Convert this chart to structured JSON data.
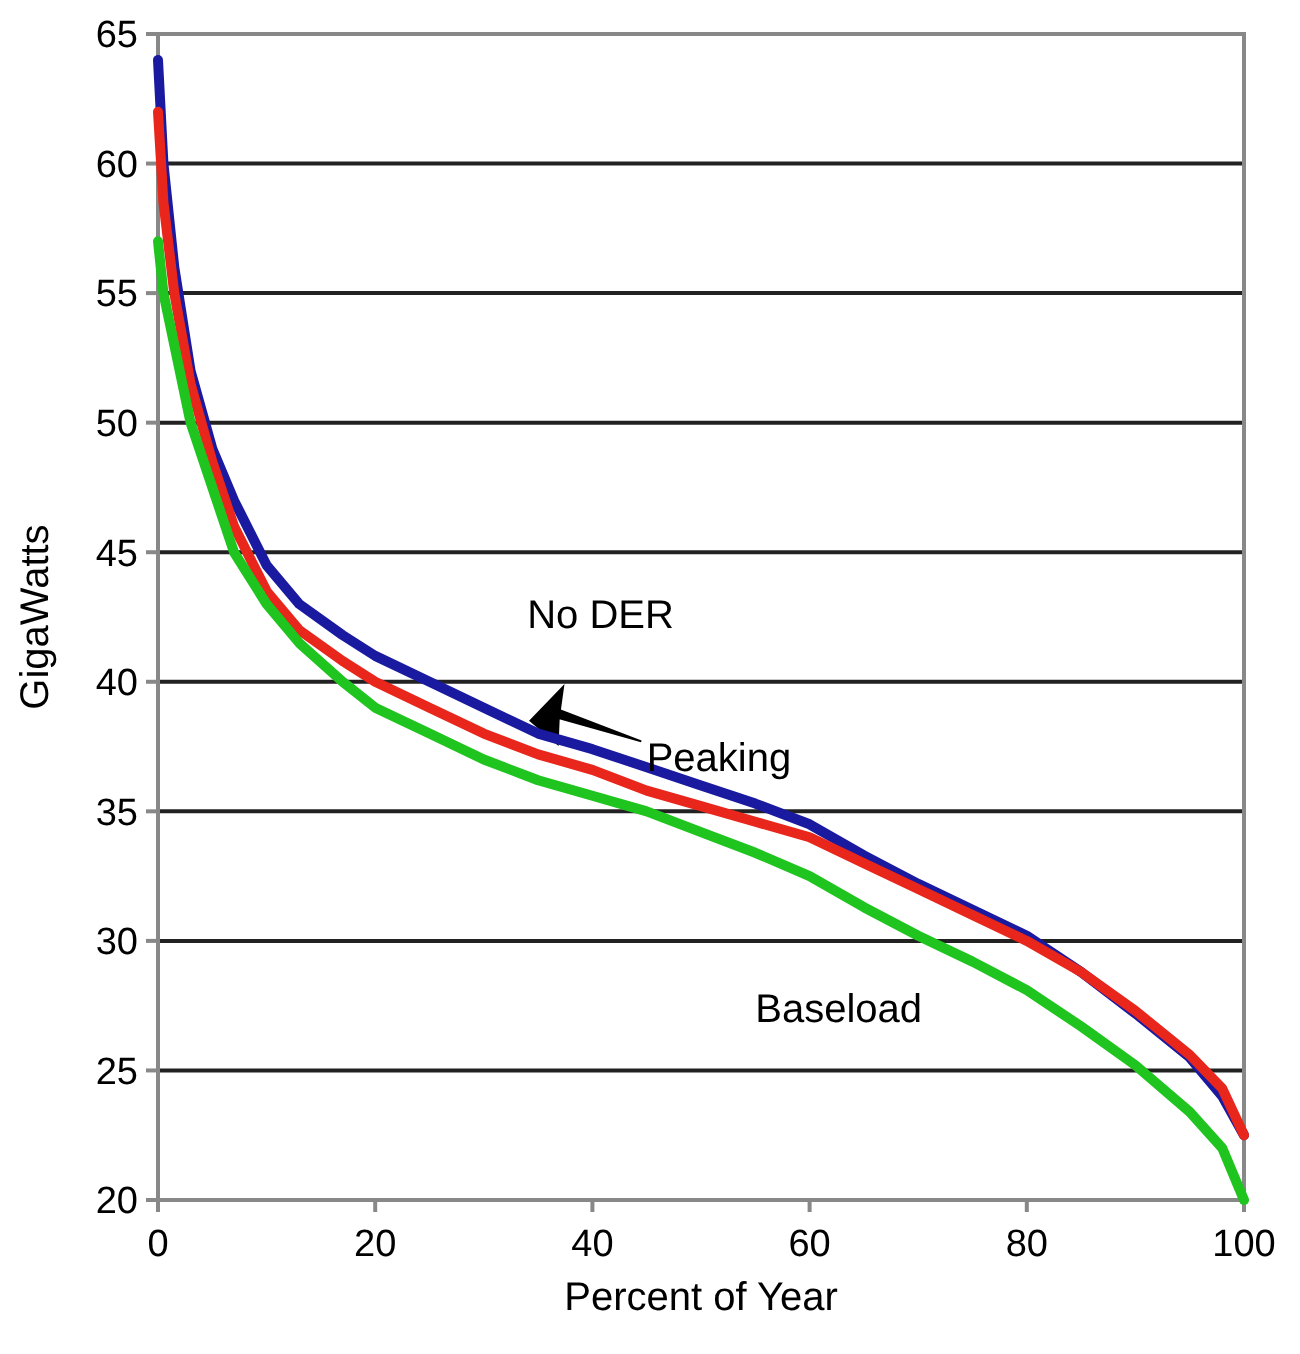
{
  "chart_data": {
    "type": "line",
    "xlabel": "Percent of Year",
    "ylabel": "GigaWatts",
    "xlim": [
      0,
      100
    ],
    "xticks": [
      0,
      20,
      40,
      60,
      80,
      100
    ],
    "ylim": [
      20,
      65
    ],
    "yticks": [
      20,
      25,
      30,
      35,
      40,
      45,
      50,
      55,
      60,
      65
    ],
    "grid": "y",
    "legend": false,
    "marker": "none",
    "line_style": "solid",
    "x": [
      0,
      0.5,
      1.5,
      3,
      5,
      7,
      10,
      13,
      17,
      20,
      25,
      30,
      35,
      40,
      45,
      50,
      55,
      60,
      65,
      70,
      75,
      80,
      85,
      90,
      95,
      98,
      100
    ],
    "series": [
      {
        "name": "No DER",
        "color": "#1a1aa0",
        "values": [
          64,
          60,
          56,
          52,
          49,
          47,
          44.5,
          43,
          41.8,
          41,
          40,
          39,
          38,
          37.4,
          36.7,
          36,
          35.3,
          34.5,
          33.3,
          32.2,
          31.2,
          30.2,
          28.8,
          27.2,
          25.5,
          24,
          22.5
        ]
      },
      {
        "name": "Peaking",
        "color": "#e8261b",
        "values": [
          62,
          58.5,
          55,
          51.5,
          48.5,
          46,
          43.5,
          42,
          40.8,
          40,
          39,
          38,
          37.2,
          36.6,
          35.8,
          35.2,
          34.6,
          34,
          33,
          32,
          31,
          30,
          28.8,
          27.3,
          25.6,
          24.3,
          22.5
        ]
      },
      {
        "name": "Baseload",
        "color": "#1fc41f",
        "values": [
          57,
          55,
          53,
          50,
          47.5,
          45,
          43,
          41.5,
          40,
          39,
          38,
          37,
          36.2,
          35.6,
          35,
          34.2,
          33.4,
          32.5,
          31.3,
          30.2,
          29.2,
          28.1,
          26.7,
          25.2,
          23.4,
          22,
          20
        ]
      }
    ]
  }
}
